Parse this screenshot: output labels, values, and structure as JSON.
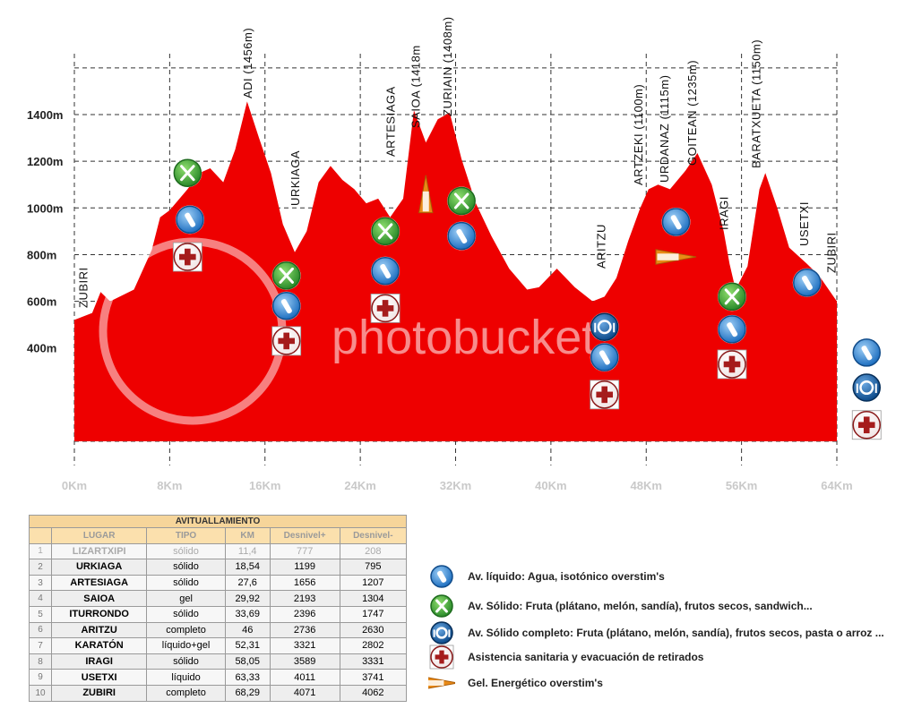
{
  "chart_data": {
    "type": "area",
    "x_ticks": [
      "0Km",
      "8Km",
      "16Km",
      "24Km",
      "32Km",
      "40Km",
      "48Km",
      "56Km",
      "64Km"
    ],
    "y_ticks": [
      "400m",
      "600m",
      "800m",
      "1000m",
      "1200m",
      "1400m"
    ],
    "x_range": [
      0,
      64
    ],
    "y_range": [
      0,
      1400
    ],
    "grid": true,
    "fill_color": "#ee0000",
    "profile": [
      [
        0,
        520
      ],
      [
        1.5,
        550
      ],
      [
        2.2,
        640
      ],
      [
        3,
        600
      ],
      [
        5,
        650
      ],
      [
        6.5,
        820
      ],
      [
        7.2,
        960
      ],
      [
        8,
        990
      ],
      [
        9.5,
        1080
      ],
      [
        10.5,
        1150
      ],
      [
        11.4,
        1170
      ],
      [
        12.5,
        1110
      ],
      [
        13.5,
        1250
      ],
      [
        14.5,
        1456
      ],
      [
        15.5,
        1300
      ],
      [
        16.5,
        1150
      ],
      [
        17.5,
        930
      ],
      [
        18.5,
        810
      ],
      [
        19.5,
        900
      ],
      [
        20.5,
        1110
      ],
      [
        21.5,
        1180
      ],
      [
        22.5,
        1120
      ],
      [
        23.5,
        1080
      ],
      [
        24.5,
        1020
      ],
      [
        25.5,
        1040
      ],
      [
        26.5,
        960
      ],
      [
        27.6,
        1040
      ],
      [
        28.5,
        1418
      ],
      [
        29.5,
        1280
      ],
      [
        30.5,
        1380
      ],
      [
        31.5,
        1408
      ],
      [
        32.5,
        1210
      ],
      [
        33.7,
        1020
      ],
      [
        35,
        880
      ],
      [
        36.5,
        740
      ],
      [
        38,
        650
      ],
      [
        39,
        660
      ],
      [
        40.5,
        740
      ],
      [
        42,
        660
      ],
      [
        43.5,
        600
      ],
      [
        44.5,
        620
      ],
      [
        45.5,
        700
      ],
      [
        46.5,
        860
      ],
      [
        47.5,
        1000
      ],
      [
        48.2,
        1080
      ],
      [
        49,
        1100
      ],
      [
        50,
        1080
      ],
      [
        51.3,
        1160
      ],
      [
        52.3,
        1235
      ],
      [
        53.5,
        1100
      ],
      [
        54.5,
        900
      ],
      [
        55,
        760
      ],
      [
        55.5,
        650
      ],
      [
        56.5,
        750
      ],
      [
        57.5,
        1080
      ],
      [
        58,
        1150
      ],
      [
        59,
        1000
      ],
      [
        60,
        830
      ],
      [
        61.5,
        760
      ],
      [
        62.5,
        710
      ],
      [
        64,
        600
      ]
    ],
    "places": [
      {
        "name": "ZUBIRI",
        "km": 0.7
      },
      {
        "name": "ADI (1456m)",
        "km": 14.5
      },
      {
        "name": "URKIAGA",
        "km": 18.5
      },
      {
        "name": "ARTESIAGA",
        "km": 26.5
      },
      {
        "name": "SAIOA (1418m",
        "km": 28.6
      },
      {
        "name": "ZURIAIN (1408m)",
        "km": 31.3
      },
      {
        "name": "ARITZU",
        "km": 44.2
      },
      {
        "name": "ARTZEKI (1100m)",
        "km": 47.3
      },
      {
        "name": "URDANAZ (1115m)",
        "km": 49.5
      },
      {
        "name": "GOITEAN (1235m)",
        "km": 51.8
      },
      {
        "name": "IRAGI",
        "km": 54.5
      },
      {
        "name": "BARATXUETA (1150m)",
        "km": 57.2
      },
      {
        "name": "USETXI",
        "km": 61.2
      },
      {
        "name": "ZUBIRI",
        "km": 63.5
      }
    ],
    "markers": [
      {
        "icon": "solid-fork-knife-icon",
        "km": 9.5,
        "elev": 1150
      },
      {
        "icon": "water-bottle-icon",
        "km": 9.7,
        "elev": 950
      },
      {
        "icon": "medical-cross-icon",
        "km": 9.5,
        "elev": 790
      },
      {
        "icon": "solid-fork-knife-icon",
        "km": 17.8,
        "elev": 710
      },
      {
        "icon": "water-bottle-icon",
        "km": 17.8,
        "elev": 580
      },
      {
        "icon": "medical-cross-icon",
        "km": 17.8,
        "elev": 430
      },
      {
        "icon": "solid-fork-knife-icon",
        "km": 26.1,
        "elev": 900
      },
      {
        "icon": "water-bottle-icon",
        "km": 26.1,
        "elev": 730
      },
      {
        "icon": "medical-cross-icon",
        "km": 26.1,
        "elev": 570
      },
      {
        "icon": "overstim-gel-icon",
        "km": 29.5,
        "elev": 1060
      },
      {
        "icon": "solid-fork-knife-icon",
        "km": 32.5,
        "elev": 1030
      },
      {
        "icon": "water-bottle-icon",
        "km": 32.5,
        "elev": 880
      },
      {
        "icon": "complete-meal-icon",
        "km": 44.5,
        "elev": 490
      },
      {
        "icon": "water-bottle-icon",
        "km": 44.5,
        "elev": 360
      },
      {
        "icon": "medical-cross-icon",
        "km": 44.5,
        "elev": 200
      },
      {
        "icon": "water-bottle-icon",
        "km": 50.5,
        "elev": 940
      },
      {
        "icon": "overstim-gel-icon",
        "km": 50.5,
        "elev": 790
      },
      {
        "icon": "solid-fork-knife-icon",
        "km": 55.2,
        "elev": 620
      },
      {
        "icon": "water-bottle-icon",
        "km": 55.2,
        "elev": 480
      },
      {
        "icon": "medical-cross-icon",
        "km": 55.2,
        "elev": 330
      },
      {
        "icon": "water-bottle-icon",
        "km": 61.5,
        "elev": 680
      },
      {
        "icon": "water-bottle-icon",
        "km": 66.5,
        "elev": 380
      },
      {
        "icon": "complete-meal-icon",
        "km": 66.5,
        "elev": 230
      },
      {
        "icon": "medical-cross-icon",
        "km": 66.5,
        "elev": 70
      }
    ]
  },
  "watermark": "photobucket",
  "table": {
    "title": "AVITUALLAMIENTO",
    "headers": [
      "LUGAR",
      "TIPO",
      "KM",
      "Desnivel+",
      "Desnivel-"
    ],
    "rows": [
      [
        "1",
        "LIZARTXIPI",
        "sólido",
        "11,4",
        "777",
        "208"
      ],
      [
        "2",
        "URKIAGA",
        "sólido",
        "18,54",
        "1199",
        "795"
      ],
      [
        "3",
        "ARTESIAGA",
        "sólido",
        "27,6",
        "1656",
        "1207"
      ],
      [
        "4",
        "SAIOA",
        "gel",
        "29,92",
        "2193",
        "1304"
      ],
      [
        "5",
        "ITURRONDO",
        "sólido",
        "33,69",
        "2396",
        "1747"
      ],
      [
        "6",
        "ARITZU",
        "completo",
        "46",
        "2736",
        "2630"
      ],
      [
        "7",
        "KARATÓN",
        "líquido+gel",
        "52,31",
        "3321",
        "2802"
      ],
      [
        "8",
        "IRAGI",
        "sólido",
        "58,05",
        "3589",
        "3331"
      ],
      [
        "9",
        "USETXI",
        "líquido",
        "63,33",
        "4011",
        "3741"
      ],
      [
        "10",
        "ZUBIRI",
        "completo",
        "68,29",
        "4071",
        "4062"
      ]
    ]
  },
  "legend": [
    {
      "icon": "water-bottle-icon",
      "label": "Av. líquido: Agua, isotónico overstim's"
    },
    {
      "icon": "solid-fork-knife-icon",
      "label": "Av. Sólido: Fruta (plátano, melón, sandía), frutos secos, sandwich..."
    },
    {
      "icon": "complete-meal-icon",
      "label": "Av. Sólido completo: Fruta (plátano, melón, sandía), frutos secos, pasta o arroz ..."
    },
    {
      "icon": "medical-cross-icon",
      "label": "Asistencia sanitaria y evacuación de retirados"
    },
    {
      "icon": "overstim-gel-icon",
      "label": "Gel. Energético overstim's"
    }
  ],
  "colors": {
    "profile": "#ee0000",
    "water": "#1e6fc0",
    "solid": "#2f9a2f",
    "meal": "#0c4a8a",
    "medical": "#a51c1c",
    "gel": "#e98a16"
  }
}
